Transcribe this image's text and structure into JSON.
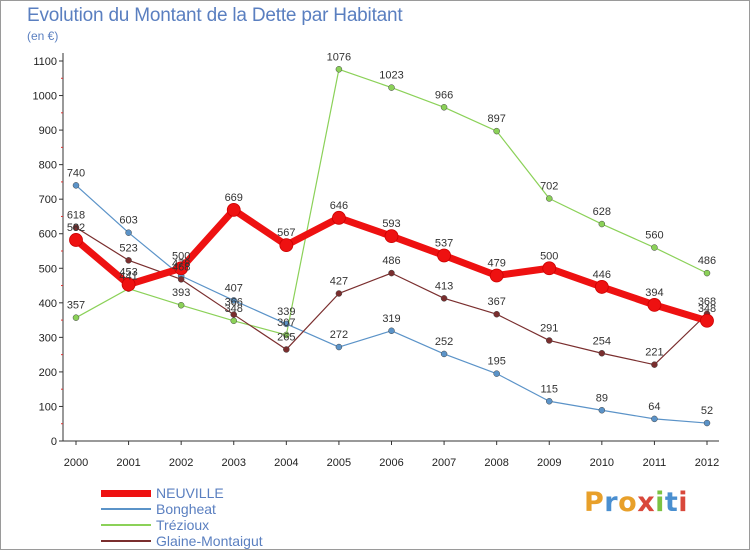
{
  "title": "Evolution du Montant de la Dette par Habitant",
  "subtitle": "(en €)",
  "logo": {
    "text": "Proxiti",
    "letters": [
      "P",
      "r",
      "o",
      "x",
      "i",
      "t",
      "i"
    ],
    "colors": [
      "#e8a02a",
      "#4a8fd0",
      "#e8a02a",
      "#d9483b",
      "#7cc242",
      "#4a8fd0",
      "#d9483b"
    ]
  },
  "chart_data": {
    "type": "line",
    "title": "Evolution du Montant de la Dette par Habitant",
    "ylabel": "(en €)",
    "xlabel": "",
    "x": [
      "2000",
      "2001",
      "2002",
      "2003",
      "2004",
      "2005",
      "2006",
      "2007",
      "2008",
      "2009",
      "2010",
      "2011",
      "2012"
    ],
    "ylim": [
      0,
      1100
    ],
    "yticks": [
      "0",
      "100",
      "200",
      "300",
      "400",
      "500",
      "600",
      "700",
      "800",
      "900",
      "1000",
      "1100"
    ],
    "grid": false,
    "legend_position": "bottom-left",
    "series": [
      {
        "name": "NEUVILLE",
        "color": "#ee1111",
        "values": [
          582,
          453,
          500,
          669,
          567,
          646,
          593,
          537,
          479,
          500,
          446,
          394,
          348
        ],
        "labels": [
          "582",
          "453",
          "500",
          "669",
          "567",
          "646",
          "593",
          "537",
          "479",
          "500",
          "446",
          "394",
          "348"
        ]
      },
      {
        "name": "Bongheat",
        "color": "#5b93c8",
        "values": [
          740,
          603,
          478,
          407,
          339,
          272,
          319,
          252,
          195,
          115,
          89,
          64,
          52
        ],
        "labels": [
          "740",
          "603",
          "478",
          "407",
          "339",
          "272",
          "319",
          "252",
          "195",
          "115",
          "89",
          "64",
          "52"
        ]
      },
      {
        "name": "Trézioux",
        "color": "#8bd158",
        "values": [
          357,
          441,
          393,
          348,
          307,
          1076,
          1023,
          966,
          897,
          702,
          628,
          560,
          486
        ],
        "labels": [
          "357",
          "441",
          "393",
          "348",
          "307",
          "1076",
          "1023",
          "966",
          "897",
          "702",
          "628",
          "560",
          "486"
        ]
      },
      {
        "name": "Glaine-Montaigut",
        "color": "#7a2e2e",
        "values": [
          618,
          523,
          468,
          366,
          265,
          427,
          486,
          413,
          367,
          291,
          254,
          221,
          368
        ],
        "labels": [
          "618",
          "523",
          "468",
          "366",
          "265",
          "427",
          "486",
          "413",
          "367",
          "291",
          "254",
          "221",
          "368"
        ]
      }
    ]
  }
}
